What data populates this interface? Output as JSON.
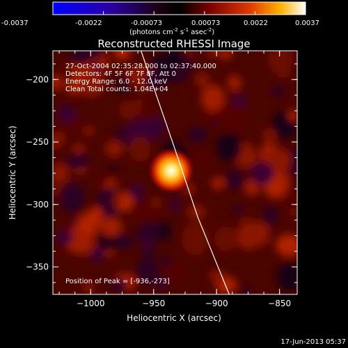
{
  "colorbar": {
    "ticks": [
      "-0.0037",
      "-0.0022",
      "-0.00073",
      "0.00073",
      "0.0022",
      "0.0037"
    ],
    "unit_main": "(photons cm",
    "unit_sup1": "-2",
    "unit_mid": " s",
    "unit_sup2": "-1",
    "unit_tail": " asec",
    "unit_sup3": "-2",
    "unit_close": ")"
  },
  "plot": {
    "title": "Reconstructed RHESSI Image",
    "xlabel": "Heliocentric X (arcsec)",
    "ylabel": "Heliocentric Y (arcsec)",
    "info": [
      "27-Oct-2004 02:35:28.000 to 02:37:40.000",
      "Detectors: 4F 5F 6F 7F 8F, Att 0",
      "Energy Range: 6.0 - 12.0 keV",
      "Clean    Total counts: 1.04E+04"
    ],
    "peak_label": "Position of Peak = [-936,-273]"
  },
  "footer": {
    "timestamp": "17-Jun-2013 05:37"
  },
  "chart_data": {
    "type": "heatmap",
    "title": "Reconstructed RHESSI Image",
    "xlabel": "Heliocentric X (arcsec)",
    "ylabel": "Heliocentric Y (arcsec)",
    "xlim": [
      -1030,
      -836
    ],
    "ylim": [
      -372,
      -177
    ],
    "x_ticks": [
      {
        "value": -1000,
        "label": "−1000"
      },
      {
        "value": -950,
        "label": "−950"
      },
      {
        "value": -900,
        "label": "−900"
      },
      {
        "value": -850,
        "label": "−850"
      }
    ],
    "y_ticks": [
      {
        "value": -200,
        "label": "−200"
      },
      {
        "value": -250,
        "label": "−250"
      },
      {
        "value": -300,
        "label": "−300"
      },
      {
        "value": -350,
        "label": "−350"
      }
    ],
    "value_range": [
      -0.0037,
      0.0037
    ],
    "peak": {
      "x": -936,
      "y": -273
    },
    "limb_curve": [
      [
        -960,
        -177
      ],
      [
        -935,
        -250
      ],
      [
        -915,
        -310
      ],
      [
        -890,
        -372
      ]
    ]
  }
}
